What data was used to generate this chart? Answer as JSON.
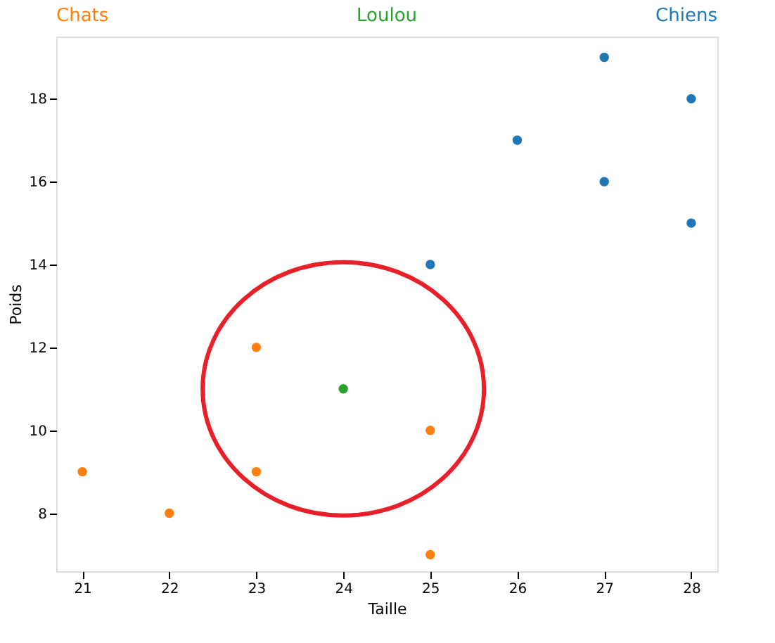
{
  "chart_data": {
    "type": "scatter",
    "xlabel": "Taille",
    "ylabel": "Poids",
    "legend": "top",
    "grid": false,
    "marker": "circle",
    "xlim": [
      20.7,
      28.3
    ],
    "xticks": [
      21,
      22,
      23,
      24,
      25,
      26,
      27,
      28
    ],
    "ylim": [
      6.6,
      19.5
    ],
    "yticks": [
      8,
      10,
      12,
      14,
      16,
      18
    ],
    "series": [
      {
        "name": "Chats",
        "color": "#ff7f0e",
        "x": [
          21,
          22,
          23,
          23,
          25,
          25
        ],
        "values": [
          9,
          8,
          12,
          9,
          10,
          7
        ]
      },
      {
        "name": "Loulou",
        "color": "#2ca02c",
        "x": [
          24
        ],
        "values": [
          11
        ]
      },
      {
        "name": "Chiens",
        "color": "#1f77b4",
        "x": [
          25,
          26,
          27,
          27,
          28,
          28
        ],
        "values": [
          14,
          17,
          19,
          16,
          18,
          15
        ]
      }
    ]
  }
}
